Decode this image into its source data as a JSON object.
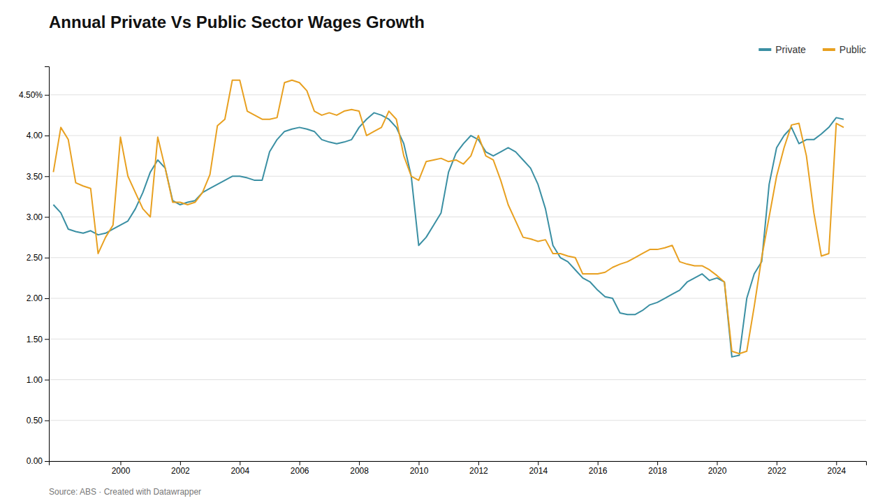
{
  "chart_data": {
    "type": "line",
    "title": "Annual Private Vs Public Sector Wages Growth",
    "annotations": [
      "Source: ABS · Created with Datawrapper"
    ],
    "x": [
      1997.75,
      1998.0,
      1998.25,
      1998.5,
      1998.75,
      1999.0,
      1999.25,
      1999.5,
      1999.75,
      2000.0,
      2000.25,
      2000.5,
      2000.75,
      2001.0,
      2001.25,
      2001.5,
      2001.75,
      2002.0,
      2002.25,
      2002.5,
      2002.75,
      2003.0,
      2003.25,
      2003.5,
      2003.75,
      2004.0,
      2004.25,
      2004.5,
      2004.75,
      2005.0,
      2005.25,
      2005.5,
      2005.75,
      2006.0,
      2006.25,
      2006.5,
      2006.75,
      2007.0,
      2007.25,
      2007.5,
      2007.75,
      2008.0,
      2008.25,
      2008.5,
      2008.75,
      2009.0,
      2009.25,
      2009.5,
      2009.75,
      2010.0,
      2010.25,
      2010.5,
      2010.75,
      2011.0,
      2011.25,
      2011.5,
      2011.75,
      2012.0,
      2012.25,
      2012.5,
      2012.75,
      2013.0,
      2013.25,
      2013.5,
      2013.75,
      2014.0,
      2014.25,
      2014.5,
      2014.75,
      2015.0,
      2015.25,
      2015.5,
      2015.75,
      2016.0,
      2016.25,
      2016.5,
      2016.75,
      2017.0,
      2017.25,
      2017.5,
      2017.75,
      2018.0,
      2018.25,
      2018.5,
      2018.75,
      2019.0,
      2019.25,
      2019.5,
      2019.75,
      2020.0,
      2020.25,
      2020.5,
      2020.75,
      2021.0,
      2021.25,
      2021.5,
      2021.75,
      2022.0,
      2022.25,
      2022.5,
      2022.75,
      2023.0,
      2023.25,
      2023.5,
      2023.75,
      2024.0,
      2024.25
    ],
    "series": [
      {
        "name": "Private",
        "color": "#3a8fa3",
        "values": [
          3.15,
          3.05,
          2.85,
          2.82,
          2.8,
          2.83,
          2.78,
          2.8,
          2.85,
          2.9,
          2.95,
          3.1,
          3.3,
          3.55,
          3.7,
          3.6,
          3.2,
          3.15,
          3.18,
          3.2,
          3.3,
          3.35,
          3.4,
          3.45,
          3.5,
          3.5,
          3.48,
          3.45,
          3.45,
          3.8,
          3.95,
          4.05,
          4.08,
          4.1,
          4.08,
          4.05,
          3.95,
          3.92,
          3.9,
          3.92,
          3.95,
          4.1,
          4.2,
          4.28,
          4.25,
          4.2,
          4.1,
          3.9,
          3.5,
          2.65,
          2.75,
          2.9,
          3.05,
          3.55,
          3.78,
          3.9,
          4.0,
          3.95,
          3.8,
          3.75,
          3.8,
          3.85,
          3.8,
          3.7,
          3.6,
          3.4,
          3.1,
          2.65,
          2.5,
          2.45,
          2.35,
          2.25,
          2.2,
          2.1,
          2.02,
          2.0,
          1.82,
          1.8,
          1.8,
          1.85,
          1.92,
          1.95,
          2.0,
          2.05,
          2.1,
          2.2,
          2.25,
          2.3,
          2.22,
          2.25,
          2.2,
          1.28,
          1.3,
          2.0,
          2.3,
          2.45,
          3.4,
          3.85,
          4.0,
          4.1,
          3.9,
          3.95,
          3.95,
          4.02,
          4.1,
          4.22,
          4.2
        ]
      },
      {
        "name": "Public",
        "color": "#e8a020",
        "values": [
          3.55,
          4.1,
          3.95,
          3.42,
          3.38,
          3.35,
          2.55,
          2.75,
          2.9,
          3.98,
          3.5,
          3.3,
          3.1,
          3.0,
          3.98,
          3.6,
          3.18,
          3.18,
          3.15,
          3.18,
          3.3,
          3.52,
          4.12,
          4.2,
          4.68,
          4.68,
          4.3,
          4.25,
          4.2,
          4.2,
          4.22,
          4.65,
          4.68,
          4.65,
          4.55,
          4.3,
          4.25,
          4.28,
          4.25,
          4.3,
          4.32,
          4.3,
          4.0,
          4.05,
          4.1,
          4.3,
          4.2,
          3.75,
          3.5,
          3.45,
          3.68,
          3.7,
          3.72,
          3.68,
          3.7,
          3.65,
          3.75,
          4.0,
          3.75,
          3.7,
          3.45,
          3.15,
          2.95,
          2.75,
          2.73,
          2.7,
          2.72,
          2.55,
          2.55,
          2.52,
          2.5,
          2.3,
          2.3,
          2.3,
          2.32,
          2.38,
          2.42,
          2.45,
          2.5,
          2.55,
          2.6,
          2.6,
          2.62,
          2.65,
          2.45,
          2.42,
          2.4,
          2.4,
          2.35,
          2.28,
          2.2,
          1.35,
          1.32,
          1.35,
          1.9,
          2.5,
          3.0,
          3.5,
          3.85,
          4.13,
          4.15,
          3.75,
          3.05,
          2.52,
          2.55,
          4.15,
          4.1
        ]
      }
    ],
    "xlim": [
      1997.6,
      2025.0
    ],
    "xticks": [
      2000,
      2002,
      2004,
      2006,
      2008,
      2010,
      2012,
      2014,
      2016,
      2018,
      2020,
      2022,
      2024
    ],
    "ylim": [
      0,
      4.85
    ],
    "yticks": [
      {
        "value": 0.0,
        "label": "0.00"
      },
      {
        "value": 0.5,
        "label": "0.50"
      },
      {
        "value": 1.0,
        "label": "1.00"
      },
      {
        "value": 1.5,
        "label": "1.50"
      },
      {
        "value": 2.0,
        "label": "2.00"
      },
      {
        "value": 2.5,
        "label": "2.50"
      },
      {
        "value": 3.0,
        "label": "3.00"
      },
      {
        "value": 3.5,
        "label": "3.50"
      },
      {
        "value": 4.0,
        "label": "4.00"
      },
      {
        "value": 4.5,
        "label": "4.50%"
      }
    ],
    "grid": true,
    "legend": "upper right"
  }
}
